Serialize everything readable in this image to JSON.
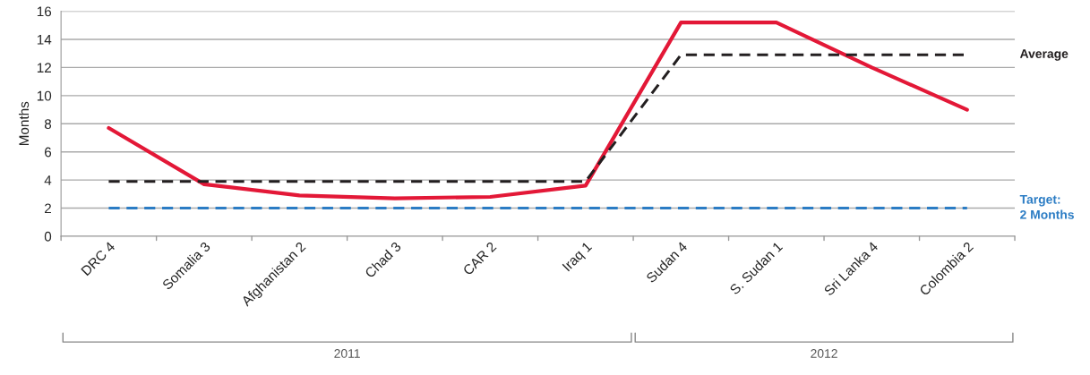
{
  "chart_data": {
    "type": "line",
    "ylabel": "Months",
    "categories": [
      "DRC 4",
      "Somalia 3",
      "Afghanistan 2",
      "Chad 3",
      "CAR 2",
      "Iraq 1",
      "Sudan 4",
      "S. Sudan 1",
      "Sri Lanka 4",
      "Colombia 2"
    ],
    "series": [
      {
        "color": "#e31837",
        "values": [
          7.7,
          3.7,
          2.9,
          2.7,
          2.8,
          3.6,
          15.2,
          15.2,
          12.0,
          9.0
        ],
        "line_style": "solid"
      },
      {
        "name": "Average",
        "color": "#231f20",
        "values": [
          3.9,
          3.9,
          3.9,
          3.9,
          3.9,
          3.9,
          12.9,
          12.9,
          12.9,
          12.9
        ],
        "line_style": "dashed"
      }
    ],
    "ref_lines": [
      {
        "axis": "y",
        "value": 2,
        "label": "Target:\n2 Months",
        "color": "#2b7cc4",
        "line_style": "dashed"
      }
    ],
    "annotations": [
      "2011",
      "2012"
    ],
    "ylim": [
      0,
      16
    ],
    "yticks": [
      0,
      2,
      4,
      6,
      8,
      10,
      12,
      14,
      16
    ],
    "grid": "y",
    "marker": "none",
    "legend": false
  }
}
